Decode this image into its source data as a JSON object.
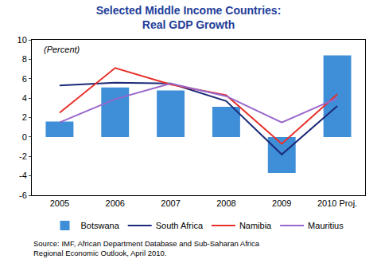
{
  "chart_data": {
    "type": "bar",
    "title": "Selected Middle Income Countries:",
    "subtitle": "Real GDP Growth",
    "annotations": [
      "(Percent)"
    ],
    "source": [
      "Source: IMF, African Department Database and Sub-Saharan Africa",
      "Regional Economic Outlook, April 2010."
    ],
    "categories": [
      "2005",
      "2006",
      "2007",
      "2008",
      "2009",
      "2010 Proj."
    ],
    "series": [
      {
        "name": "Botswana",
        "type": "bar",
        "color": "#3f8fd8",
        "values": [
          1.6,
          5.1,
          4.8,
          3.1,
          -3.7,
          8.4
        ]
      },
      {
        "name": "South Africa",
        "type": "line",
        "color": "#1c2a78",
        "values": [
          5.3,
          5.6,
          5.5,
          3.7,
          -1.8,
          3.2
        ]
      },
      {
        "name": "Namibia",
        "type": "line",
        "color": "#e8302a",
        "values": [
          2.5,
          7.1,
          5.4,
          4.3,
          -0.7,
          4.4
        ]
      },
      {
        "name": "Mauritius",
        "type": "line",
        "color": "#9966cc",
        "values": [
          1.5,
          3.9,
          5.5,
          4.2,
          1.5,
          4.0
        ]
      }
    ],
    "ylim": [
      -6,
      10
    ],
    "yticks": [
      -6,
      -4,
      -2,
      0,
      2,
      4,
      6,
      8,
      10
    ],
    "grid": false,
    "legend": "bottom"
  }
}
